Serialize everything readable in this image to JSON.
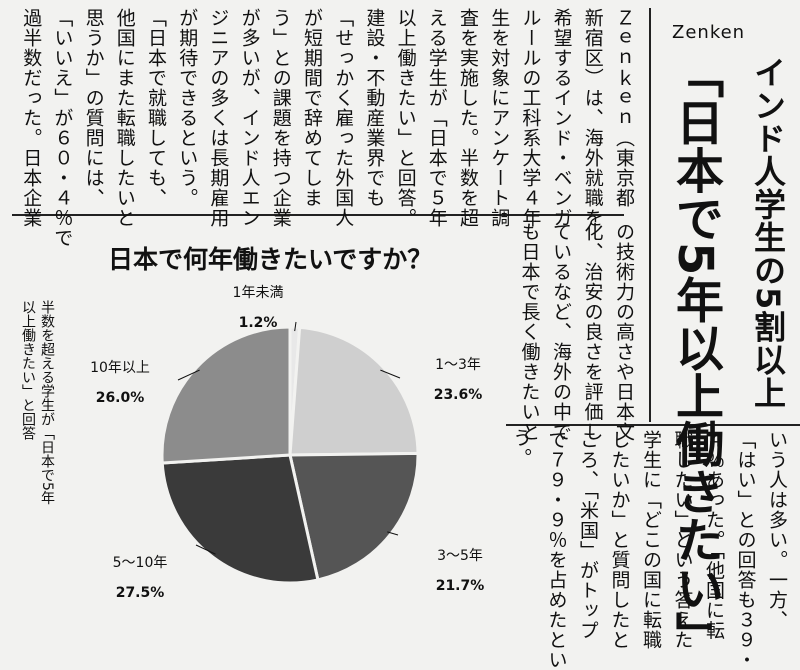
{
  "brand": "Zenken",
  "headline": {
    "line1": "インド人学生の5割以上",
    "line2": "「日本で5年以上働きたい」"
  },
  "article": {
    "upper_columns": [
      "Ｚｅｎｋｅｎ（東京都",
      "新宿区）は、海外就職を",
      "希望するインド・ベンガ",
      "ルールの工科系大学４年",
      "生を対象にアンケート調",
      "査を実施した。半数を超",
      "える学生が「日本で５年",
      "以上働きたい」と回答。",
      "建設・不動産業界でも",
      "「せっかく雇った外国人",
      "が短期間で辞めてしま",
      "う」との課題を持つ企業",
      "が多いが、インド人エン",
      "ジニアの多くは長期雇用",
      "が期待できるという。",
      "「日本で就職しても、",
      "他国にまた転職したいと",
      "思うか」の質問には、",
      "「いいえ」が６０・４％で",
      "過半数だった。日本企業"
    ],
    "middle_columns": [
      "の技術力の高さや日本文",
      "化、治安の良さを評価し",
      "ているなど、海外の中で",
      "も日本で長く働きたいと"
    ],
    "middle_last": "う。",
    "lower_columns": [
      "いう人は多い。一方、",
      "「はい」との回答も３９・",
      "４％あった。「他国に転",
      "職したい」という答えた",
      "学生に「どこの国に転職",
      "したいか」と質問したと",
      "ころ、「米国」がトップ",
      "で７９・９％を占めたとい"
    ]
  },
  "chart": {
    "caption": "半数を超える学生が「日本で5年\n以上働きたい」と回答"
  },
  "chart_data": {
    "type": "pie",
    "title": "日本で何年働きたいですか？",
    "slices": [
      {
        "label": "1年未満",
        "value": 1.2,
        "display": "1.2%",
        "color": "#e8e8e8"
      },
      {
        "label": "1〜3年",
        "value": 23.6,
        "display": "23.6%",
        "color": "#cfcfcf"
      },
      {
        "label": "3〜5年",
        "value": 21.7,
        "display": "21.7%",
        "color": "#555555"
      },
      {
        "label": "5〜10年",
        "value": 27.5,
        "display": "27.5%",
        "color": "#3a3a3a"
      },
      {
        "label": "10年以上",
        "value": 26.0,
        "display": "26.0%",
        "color": "#8c8c8c"
      }
    ]
  }
}
